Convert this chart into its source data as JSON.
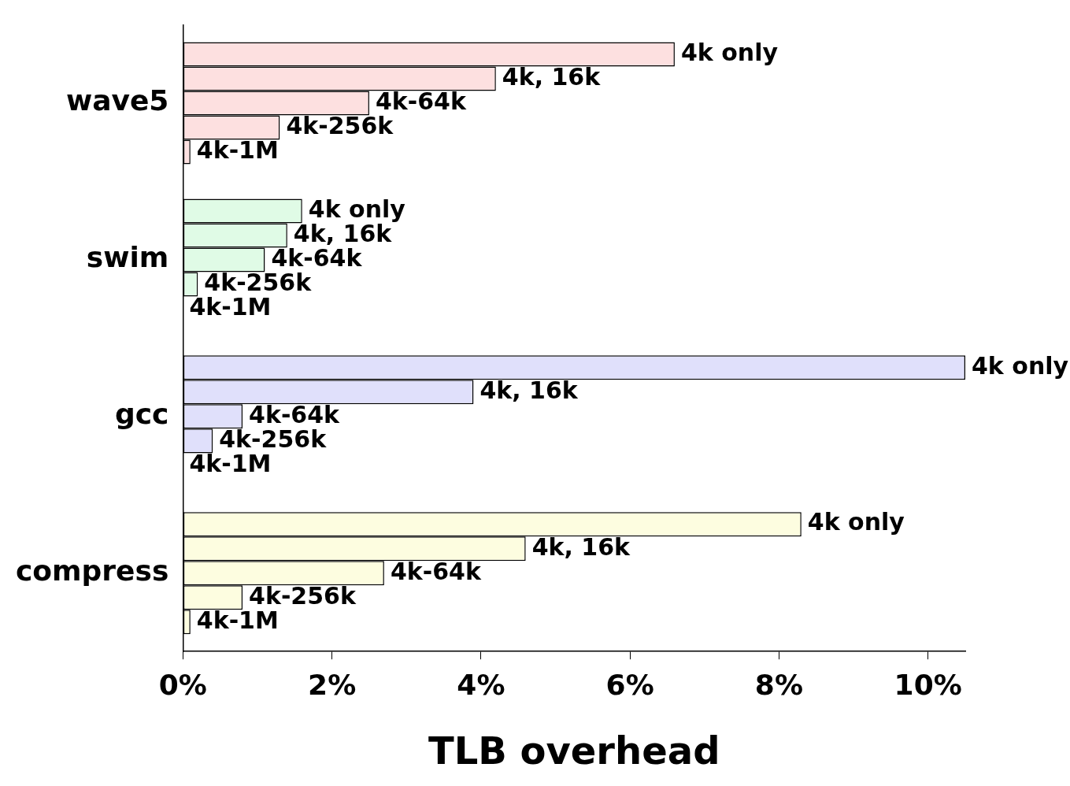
{
  "chart_data": {
    "type": "bar",
    "orientation": "horizontal",
    "xlabel": "TLB overhead",
    "categories": [
      "wave5",
      "swim",
      "gcc",
      "compress"
    ],
    "series": [
      {
        "name": "4k only",
        "colors": [
          "#fde0e0",
          "#e0fbe6",
          "#e0e0fb",
          "#fdfde0"
        ],
        "values": [
          6.6,
          1.6,
          10.5,
          8.3
        ]
      },
      {
        "name": "4k, 16k",
        "colors": [
          "#fde0e0",
          "#e0fbe6",
          "#e0e0fb",
          "#fdfde0"
        ],
        "values": [
          4.2,
          1.4,
          3.9,
          4.6
        ]
      },
      {
        "name": "4k-64k",
        "colors": [
          "#fde0e0",
          "#e0fbe6",
          "#e0e0fb",
          "#fdfde0"
        ],
        "values": [
          2.5,
          1.1,
          0.8,
          2.7
        ]
      },
      {
        "name": "4k-256k",
        "colors": [
          "#fde0e0",
          "#e0fbe6",
          "#e0e0fb",
          "#fdfde0"
        ],
        "values": [
          1.3,
          0.2,
          0.4,
          0.8
        ]
      },
      {
        "name": "4k-1M",
        "colors": [
          "#fde0e0",
          "#e0fbe6",
          "#e0e0fb",
          "#fdfde0"
        ],
        "values": [
          0.1,
          0,
          0,
          0.1
        ]
      }
    ],
    "xlim": [
      0,
      10.5
    ],
    "xticks": [
      {
        "value": 0,
        "label": "0%"
      },
      {
        "value": 2,
        "label": "2%"
      },
      {
        "value": 4,
        "label": "4%"
      },
      {
        "value": 6,
        "label": "6%"
      },
      {
        "value": 8,
        "label": "8%"
      },
      {
        "value": 10,
        "label": "10%"
      }
    ],
    "grid": false,
    "legend": false
  }
}
